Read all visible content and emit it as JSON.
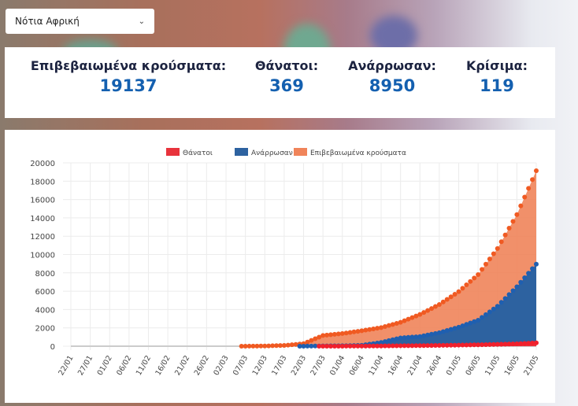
{
  "country_select": {
    "value": "Νότια Αφρική",
    "icon": "chevron-down-icon"
  },
  "stats": [
    {
      "label": "Επιβεβαιωμένα κρούσματα:",
      "value": "19137"
    },
    {
      "label": "Θάνατοι:",
      "value": "369"
    },
    {
      "label": "Ανάρρωσαν:",
      "value": "8950"
    },
    {
      "label": "Κρίσιμα:",
      "value": "119"
    }
  ],
  "chart_data": {
    "type": "area",
    "legend_position": "top",
    "grid": true,
    "ylim": [
      0,
      20000
    ],
    "yticks": [
      0,
      2000,
      4000,
      6000,
      8000,
      10000,
      12000,
      14000,
      16000,
      18000,
      20000
    ],
    "x": [
      "22/01",
      "27/01",
      "01/02",
      "06/02",
      "11/02",
      "16/02",
      "21/02",
      "26/02",
      "02/03",
      "07/03",
      "12/03",
      "17/03",
      "22/03",
      "27/03",
      "01/04",
      "06/04",
      "11/04",
      "16/04",
      "21/04",
      "26/04",
      "01/05",
      "06/05",
      "11/05",
      "16/05",
      "21/05"
    ],
    "series": [
      {
        "name": "Θάνατοι",
        "color": "#e8333c",
        "values": [
          null,
          null,
          null,
          null,
          null,
          null,
          null,
          null,
          null,
          null,
          null,
          null,
          null,
          1,
          5,
          13,
          24,
          48,
          65,
          87,
          116,
          153,
          206,
          261,
          369
        ]
      },
      {
        "name": "Ανάρρωσαν",
        "color": "#2d62a0",
        "values": [
          null,
          null,
          null,
          null,
          null,
          null,
          null,
          null,
          null,
          null,
          null,
          null,
          0,
          31,
          50,
          95,
          410,
          903,
          1055,
          1473,
          2073,
          2835,
          4357,
          6478,
          8950
        ]
      },
      {
        "name": "Επιβεβαιωμένα κρούσματα",
        "color": "#f0845a",
        "values": [
          null,
          null,
          null,
          null,
          null,
          null,
          null,
          null,
          null,
          1,
          24,
          85,
          274,
          1170,
          1380,
          1686,
          2028,
          2605,
          3465,
          4546,
          5951,
          7808,
          10652,
          14355,
          19137
        ]
      }
    ]
  }
}
